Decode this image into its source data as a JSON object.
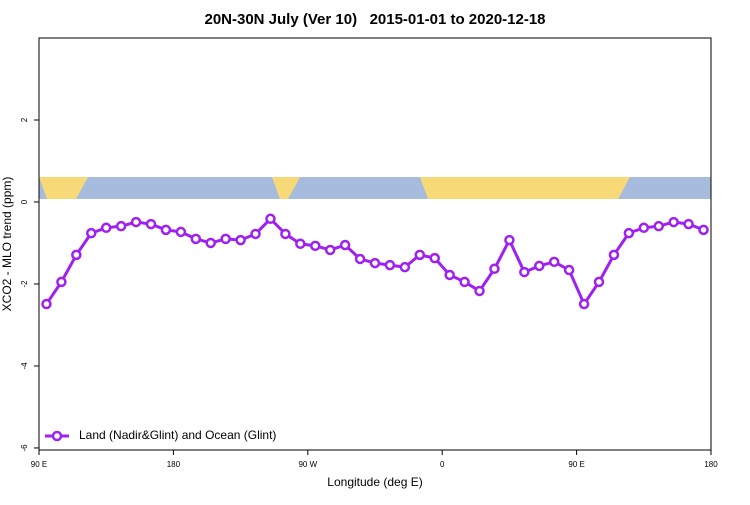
{
  "chart_data": {
    "type": "line",
    "title": "20N-30N July (Ver 10)   2015-01-01 to 2020-12-18",
    "x_label": "Longitude (deg E)",
    "y_label": "XCO2 - MLO trend (ppm)",
    "x": [
      95,
      105,
      115,
      125,
      135,
      145,
      155,
      165,
      175,
      185,
      195,
      205,
      215,
      225,
      235,
      245,
      255,
      265,
      275,
      285,
      295,
      305,
      315,
      325,
      335,
      345,
      355,
      365,
      375,
      385,
      395,
      405,
      415,
      425,
      435,
      445,
      455,
      465,
      475,
      485,
      495,
      505,
      515,
      525,
      535
    ],
    "series": [
      {
        "name": "Land (Nadir&Glint) and Ocean (Glint)",
        "color": "#a020f0",
        "values": [
          -2.49,
          -1.95,
          -1.29,
          -0.76,
          -0.63,
          -0.59,
          -0.49,
          -0.54,
          -0.68,
          -0.73,
          -0.9,
          -1.0,
          -0.9,
          -0.93,
          -0.78,
          -0.41,
          -0.78,
          -1.02,
          -1.07,
          -1.17,
          -1.05,
          -1.39,
          -1.49,
          -1.54,
          -1.59,
          -1.29,
          -1.37,
          -1.78,
          -1.95,
          -2.17,
          -1.63,
          -0.93,
          -1.71,
          -1.56,
          -1.46,
          -1.66,
          -2.49,
          -1.95,
          -1.29,
          -0.76,
          -0.63,
          -0.59,
          -0.49,
          -0.54,
          -0.68
        ]
      }
    ],
    "xlim": [
      90,
      540
    ],
    "xticks": [
      {
        "value": 90,
        "label": "90 E"
      },
      180,
      {
        "value": 270,
        "label": "90 W"
      },
      {
        "value": 360,
        "label": "0"
      },
      {
        "value": 450,
        "label": "90 E"
      },
      {
        "value": 540,
        "label": "180"
      }
    ],
    "ylim": [
      -6.05,
      4
    ],
    "yticks": [
      -6,
      -4,
      -2,
      0,
      2
    ],
    "legend": "bottom-left"
  }
}
